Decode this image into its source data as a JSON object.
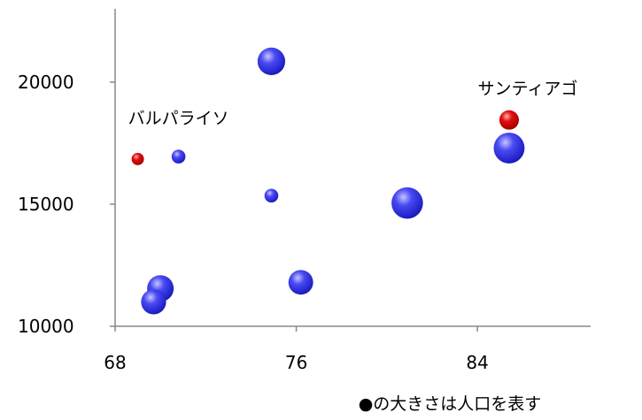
{
  "chart_data": {
    "type": "bubble",
    "xlim": [
      68,
      89
    ],
    "ylim": [
      10000,
      23000
    ],
    "x_ticks": [
      "68",
      "76",
      "84"
    ],
    "y_ticks": [
      "10000",
      "15000",
      "20000"
    ],
    "grid": false,
    "colors": {
      "default": "#2b2bdc",
      "highlight": "#d40000"
    },
    "points": [
      {
        "x": 69.0,
        "y": 16850,
        "size": 0.8,
        "color": "highlight",
        "label": "バルパライソ"
      },
      {
        "x": 70.8,
        "y": 16950,
        "size": 1.0,
        "color": "default",
        "label": ""
      },
      {
        "x": 70.0,
        "y": 11550,
        "size": 3.7,
        "color": "default",
        "label": ""
      },
      {
        "x": 69.7,
        "y": 11000,
        "size": 3.3,
        "color": "default",
        "label": ""
      },
      {
        "x": 74.9,
        "y": 20850,
        "size": 4.0,
        "color": "default",
        "label": ""
      },
      {
        "x": 74.9,
        "y": 15350,
        "size": 1.0,
        "color": "default",
        "label": ""
      },
      {
        "x": 76.2,
        "y": 11800,
        "size": 3.2,
        "color": "default",
        "label": ""
      },
      {
        "x": 80.9,
        "y": 15050,
        "size": 5.2,
        "color": "default",
        "label": ""
      },
      {
        "x": 85.4,
        "y": 17300,
        "size": 5.0,
        "color": "default",
        "label": ""
      },
      {
        "x": 85.4,
        "y": 18450,
        "size": 2.0,
        "color": "highlight",
        "label": "サンティアゴ"
      }
    ],
    "note": "●の大きさは人口を表す"
  }
}
